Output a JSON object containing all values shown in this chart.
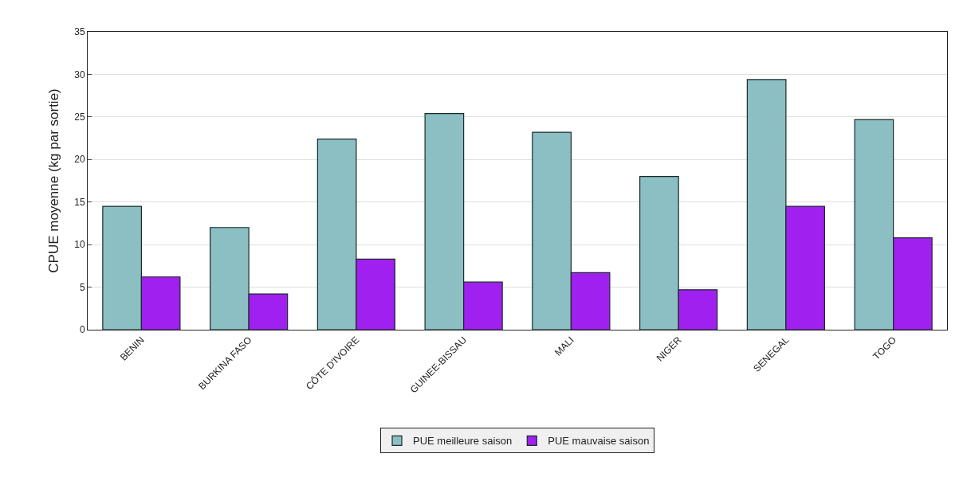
{
  "chart_data": {
    "type": "bar",
    "ylabel": "CPUE moyenne (kg par sortie)",
    "categories": [
      "BENIN",
      "BURKINA FASO",
      "CÔTE D'IVOIRE",
      "GUINEE-BISSAU",
      "MALI",
      "NIGER",
      "SENEGAL",
      "TOGO"
    ],
    "series": [
      {
        "name": "PUE meilleure saison",
        "color": "#8bbfc4",
        "values": [
          14.5,
          12.0,
          22.4,
          25.4,
          23.2,
          18.0,
          29.4,
          24.7
        ]
      },
      {
        "name": "PUE mauvaise saison",
        "color": "#a020f0",
        "values": [
          6.2,
          4.2,
          8.3,
          5.6,
          6.7,
          4.7,
          14.5,
          10.8
        ]
      }
    ],
    "ylim": [
      0,
      35
    ],
    "yticks": [
      0,
      5,
      10,
      15,
      20,
      25,
      30,
      35
    ],
    "grid": "y",
    "legend": "bottom"
  }
}
